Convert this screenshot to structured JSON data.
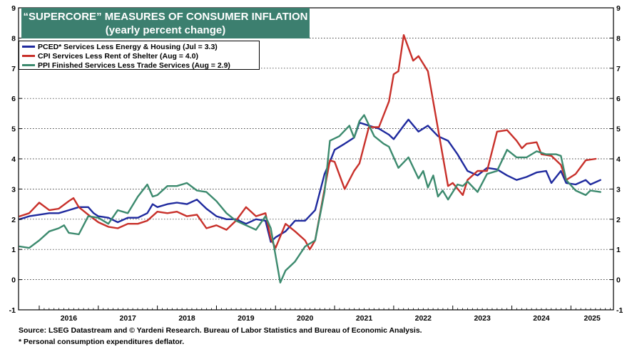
{
  "chart_data": {
    "type": "line",
    "title": "“SUPERCORE” MEASURES OF CONSUMER INFLATION",
    "subtitle": "(yearly percent change)",
    "ylim": [
      -1,
      9
    ],
    "y_ticks": [
      "-1",
      "0",
      "1",
      "2",
      "3",
      "4",
      "5",
      "6",
      "7",
      "8",
      "9"
    ],
    "x_range": [
      2015.65,
      2025.72
    ],
    "x_tick_labels": [
      "2016",
      "2017",
      "2018",
      "2019",
      "2020",
      "2021",
      "2022",
      "2023",
      "2024",
      "2025"
    ],
    "series": [
      {
        "name": "PCED* Services Less Energy & Housing",
        "legend": "PCED* Services Less Energy & Housing  (Jul = 3.3)",
        "color": "#1f2a9e",
        "points": [
          [
            2015.67,
            2.0
          ],
          [
            2015.83,
            2.1
          ],
          [
            2016.0,
            2.15
          ],
          [
            2016.17,
            2.2
          ],
          [
            2016.33,
            2.2
          ],
          [
            2016.5,
            2.3
          ],
          [
            2016.67,
            2.4
          ],
          [
            2016.83,
            2.4
          ],
          [
            2016.92,
            2.2
          ],
          [
            2017.0,
            2.1
          ],
          [
            2017.17,
            2.05
          ],
          [
            2017.33,
            1.9
          ],
          [
            2017.5,
            2.05
          ],
          [
            2017.67,
            2.05
          ],
          [
            2017.83,
            2.2
          ],
          [
            2017.92,
            2.5
          ],
          [
            2018.0,
            2.4
          ],
          [
            2018.17,
            2.5
          ],
          [
            2018.33,
            2.55
          ],
          [
            2018.5,
            2.5
          ],
          [
            2018.67,
            2.65
          ],
          [
            2018.83,
            2.35
          ],
          [
            2019.0,
            2.1
          ],
          [
            2019.17,
            2.0
          ],
          [
            2019.33,
            2.0
          ],
          [
            2019.5,
            1.85
          ],
          [
            2019.67,
            2.0
          ],
          [
            2019.83,
            1.95
          ],
          [
            2019.92,
            1.25
          ],
          [
            2020.0,
            1.4
          ],
          [
            2020.17,
            1.6
          ],
          [
            2020.33,
            1.95
          ],
          [
            2020.5,
            1.95
          ],
          [
            2020.67,
            2.3
          ],
          [
            2020.83,
            3.5
          ],
          [
            2020.92,
            3.9
          ],
          [
            2021.0,
            4.3
          ],
          [
            2021.17,
            4.5
          ],
          [
            2021.33,
            4.7
          ],
          [
            2021.42,
            5.2
          ],
          [
            2021.58,
            5.1
          ],
          [
            2021.75,
            5.0
          ],
          [
            2021.92,
            4.8
          ],
          [
            2022.0,
            4.65
          ],
          [
            2022.17,
            5.1
          ],
          [
            2022.25,
            5.3
          ],
          [
            2022.42,
            4.9
          ],
          [
            2022.58,
            5.1
          ],
          [
            2022.75,
            4.75
          ],
          [
            2022.92,
            4.6
          ],
          [
            2023.08,
            4.15
          ],
          [
            2023.25,
            3.6
          ],
          [
            2023.42,
            3.45
          ],
          [
            2023.58,
            3.7
          ],
          [
            2023.75,
            3.65
          ],
          [
            2023.92,
            3.45
          ],
          [
            2024.08,
            3.3
          ],
          [
            2024.25,
            3.4
          ],
          [
            2024.42,
            3.55
          ],
          [
            2024.58,
            3.6
          ],
          [
            2024.67,
            3.2
          ],
          [
            2024.83,
            3.6
          ],
          [
            2024.92,
            3.2
          ],
          [
            2025.08,
            3.15
          ],
          [
            2025.25,
            3.3
          ],
          [
            2025.33,
            3.15
          ],
          [
            2025.5,
            3.3
          ]
        ]
      },
      {
        "name": "CPI Services Less Rent of Shelter",
        "legend": "CPI Services Less Rent of Shelter  (Aug = 4.0)",
        "color": "#c8302a",
        "points": [
          [
            2015.67,
            2.1
          ],
          [
            2015.83,
            2.2
          ],
          [
            2016.0,
            2.55
          ],
          [
            2016.17,
            2.3
          ],
          [
            2016.33,
            2.35
          ],
          [
            2016.5,
            2.6
          ],
          [
            2016.58,
            2.7
          ],
          [
            2016.67,
            2.4
          ],
          [
            2016.83,
            2.15
          ],
          [
            2017.0,
            1.9
          ],
          [
            2017.17,
            1.75
          ],
          [
            2017.33,
            1.7
          ],
          [
            2017.5,
            1.85
          ],
          [
            2017.67,
            1.85
          ],
          [
            2017.83,
            1.95
          ],
          [
            2018.0,
            2.25
          ],
          [
            2018.17,
            2.2
          ],
          [
            2018.33,
            2.25
          ],
          [
            2018.5,
            2.1
          ],
          [
            2018.67,
            2.15
          ],
          [
            2018.83,
            1.7
          ],
          [
            2019.0,
            1.8
          ],
          [
            2019.17,
            1.65
          ],
          [
            2019.33,
            1.95
          ],
          [
            2019.5,
            2.4
          ],
          [
            2019.67,
            2.1
          ],
          [
            2019.83,
            2.2
          ],
          [
            2019.92,
            1.35
          ],
          [
            2020.0,
            1.05
          ],
          [
            2020.17,
            1.85
          ],
          [
            2020.33,
            1.6
          ],
          [
            2020.5,
            1.3
          ],
          [
            2020.58,
            1.0
          ],
          [
            2020.67,
            1.3
          ],
          [
            2020.83,
            3.0
          ],
          [
            2020.92,
            3.95
          ],
          [
            2021.0,
            3.9
          ],
          [
            2021.17,
            3.0
          ],
          [
            2021.33,
            3.6
          ],
          [
            2021.42,
            3.85
          ],
          [
            2021.58,
            5.05
          ],
          [
            2021.75,
            5.05
          ],
          [
            2021.92,
            5.9
          ],
          [
            2022.0,
            6.8
          ],
          [
            2022.08,
            6.9
          ],
          [
            2022.17,
            8.1
          ],
          [
            2022.33,
            7.25
          ],
          [
            2022.42,
            7.4
          ],
          [
            2022.58,
            6.9
          ],
          [
            2022.75,
            5.0
          ],
          [
            2022.92,
            3.1
          ],
          [
            2023.0,
            3.2
          ],
          [
            2023.17,
            2.8
          ],
          [
            2023.25,
            3.3
          ],
          [
            2023.42,
            3.6
          ],
          [
            2023.58,
            3.6
          ],
          [
            2023.75,
            4.9
          ],
          [
            2023.92,
            4.95
          ],
          [
            2024.08,
            4.6
          ],
          [
            2024.17,
            4.35
          ],
          [
            2024.25,
            4.5
          ],
          [
            2024.42,
            4.55
          ],
          [
            2024.5,
            4.15
          ],
          [
            2024.67,
            4.1
          ],
          [
            2024.83,
            3.8
          ],
          [
            2024.92,
            3.3
          ],
          [
            2025.08,
            3.5
          ],
          [
            2025.25,
            3.95
          ],
          [
            2025.42,
            4.0
          ]
        ]
      },
      {
        "name": "PPI Finished Services Less Trade Services",
        "legend": "PPI Finished Services Less Trade Services (Aug = 2.9)",
        "color": "#3c8a6e",
        "points": [
          [
            2015.67,
            1.1
          ],
          [
            2015.83,
            1.05
          ],
          [
            2016.0,
            1.3
          ],
          [
            2016.17,
            1.6
          ],
          [
            2016.33,
            1.7
          ],
          [
            2016.42,
            1.8
          ],
          [
            2016.5,
            1.55
          ],
          [
            2016.67,
            1.5
          ],
          [
            2016.83,
            2.1
          ],
          [
            2017.0,
            2.05
          ],
          [
            2017.17,
            1.85
          ],
          [
            2017.33,
            2.3
          ],
          [
            2017.5,
            2.2
          ],
          [
            2017.67,
            2.75
          ],
          [
            2017.83,
            3.15
          ],
          [
            2017.92,
            2.75
          ],
          [
            2018.0,
            2.8
          ],
          [
            2018.17,
            3.1
          ],
          [
            2018.33,
            3.1
          ],
          [
            2018.5,
            3.2
          ],
          [
            2018.67,
            2.95
          ],
          [
            2018.83,
            2.9
          ],
          [
            2019.0,
            2.6
          ],
          [
            2019.17,
            2.2
          ],
          [
            2019.33,
            1.95
          ],
          [
            2019.5,
            1.8
          ],
          [
            2019.67,
            1.65
          ],
          [
            2019.83,
            2.1
          ],
          [
            2019.92,
            1.7
          ],
          [
            2020.0,
            0.8
          ],
          [
            2020.08,
            -0.1
          ],
          [
            2020.17,
            0.3
          ],
          [
            2020.33,
            0.6
          ],
          [
            2020.5,
            1.1
          ],
          [
            2020.67,
            1.3
          ],
          [
            2020.83,
            2.9
          ],
          [
            2020.92,
            4.6
          ],
          [
            2021.08,
            4.75
          ],
          [
            2021.25,
            5.1
          ],
          [
            2021.33,
            4.7
          ],
          [
            2021.42,
            5.25
          ],
          [
            2021.5,
            5.45
          ],
          [
            2021.67,
            4.75
          ],
          [
            2021.83,
            4.5
          ],
          [
            2021.92,
            4.4
          ],
          [
            2022.08,
            3.7
          ],
          [
            2022.25,
            4.05
          ],
          [
            2022.42,
            3.35
          ],
          [
            2022.5,
            3.6
          ],
          [
            2022.58,
            3.05
          ],
          [
            2022.67,
            3.45
          ],
          [
            2022.75,
            2.75
          ],
          [
            2022.83,
            2.95
          ],
          [
            2022.92,
            2.65
          ],
          [
            2023.08,
            3.15
          ],
          [
            2023.17,
            3.1
          ],
          [
            2023.25,
            3.25
          ],
          [
            2023.42,
            2.9
          ],
          [
            2023.58,
            3.5
          ],
          [
            2023.75,
            3.6
          ],
          [
            2023.92,
            4.3
          ],
          [
            2024.08,
            4.05
          ],
          [
            2024.25,
            4.05
          ],
          [
            2024.42,
            4.25
          ],
          [
            2024.58,
            4.15
          ],
          [
            2024.75,
            4.15
          ],
          [
            2024.83,
            4.1
          ],
          [
            2024.92,
            3.3
          ],
          [
            2025.08,
            2.95
          ],
          [
            2025.25,
            2.8
          ],
          [
            2025.33,
            2.95
          ],
          [
            2025.5,
            2.9
          ]
        ]
      }
    ]
  },
  "footer": {
    "source": "Source: LSEG Datastream and © Yardeni Research. Bureau of Labor Statistics and Bureau of Economic Analysis.",
    "note": "* Personal consumption expenditures deflator."
  }
}
